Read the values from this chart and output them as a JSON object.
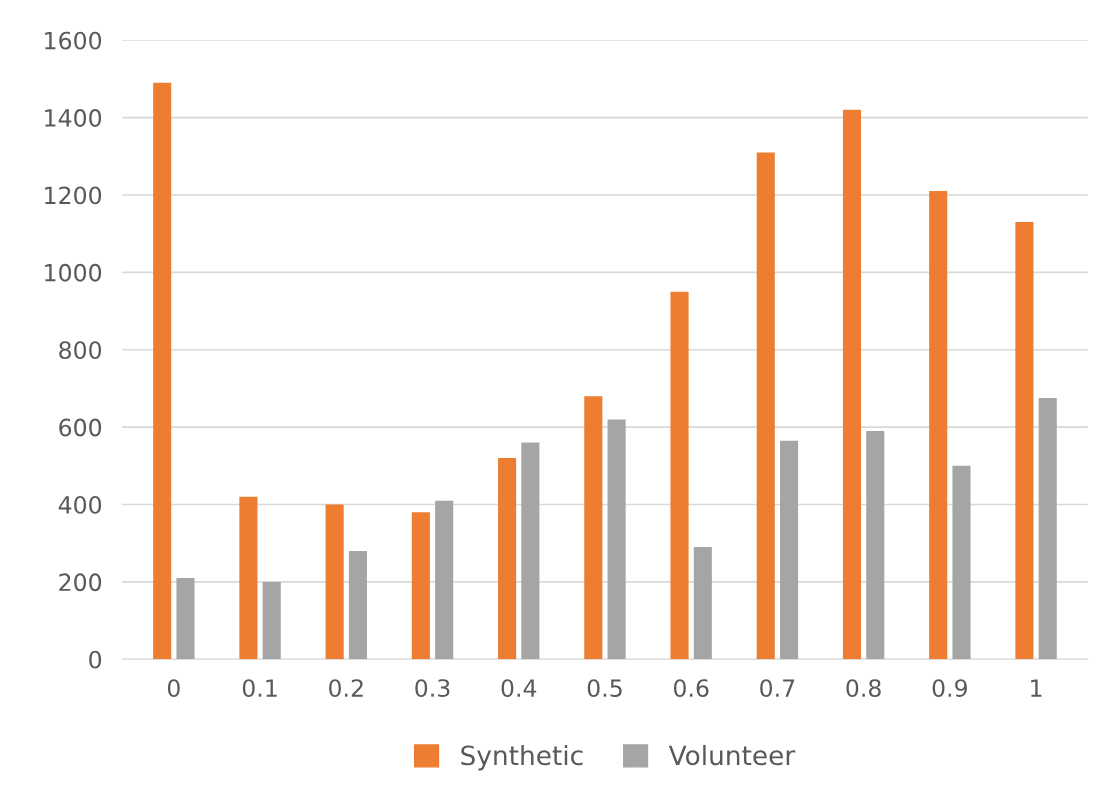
{
  "chart_data": {
    "type": "bar",
    "categories": [
      "0",
      "0.1",
      "0.2",
      "0.3",
      "0.4",
      "0.5",
      "0.6",
      "0.7",
      "0.8",
      "0.9",
      "1"
    ],
    "series": [
      {
        "name": "Synthetic",
        "color": "#ed7d31",
        "values": [
          1490,
          420,
          400,
          380,
          520,
          680,
          950,
          1310,
          1420,
          1210,
          1130
        ]
      },
      {
        "name": "Volunteer",
        "color": "#a5a5a5",
        "values": [
          210,
          200,
          280,
          410,
          560,
          620,
          290,
          565,
          590,
          500,
          675
        ]
      }
    ],
    "ylim": [
      0,
      1600
    ],
    "yticks": [
      0,
      200,
      400,
      600,
      800,
      1000,
      1200,
      1400,
      1600
    ],
    "grid": "y",
    "legend": "bottom"
  }
}
